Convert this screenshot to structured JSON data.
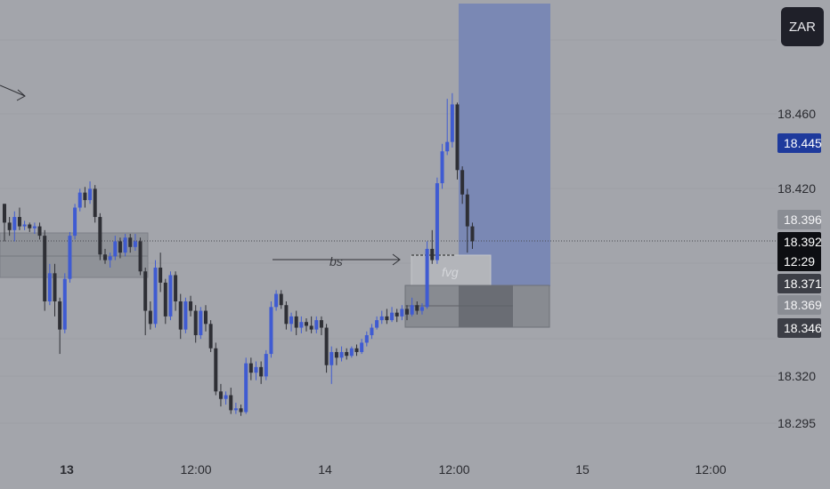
{
  "currency": "ZAR",
  "price_axis": {
    "ticks": [
      "18.460",
      "18.420",
      "18.320",
      "18.295"
    ],
    "badges": [
      {
        "value": "18.445",
        "bg": "#1e3a9c",
        "fg": "#ffffff"
      },
      {
        "value": "18.396",
        "bg": "#8a8d94",
        "fg": "#f4f4f6"
      },
      {
        "value": "18.392",
        "bg": "#0d0e12",
        "fg": "#ffffff"
      },
      {
        "value": "12:29",
        "bg": "#0d0e12",
        "fg": "#ffffff"
      },
      {
        "value": "18.371",
        "bg": "#3c3e46",
        "fg": "#ffffff"
      },
      {
        "value": "18.369",
        "bg": "#8a8d94",
        "fg": "#f4f4f6"
      },
      {
        "value": "18.346",
        "bg": "#3c3e46",
        "fg": "#ffffff"
      }
    ]
  },
  "time_axis": [
    "13",
    "12:00",
    "14",
    "12:00",
    "15",
    "12:00"
  ],
  "annotations": {
    "bs": "bs",
    "fvg": "fvg"
  },
  "colors": {
    "up": "#3f5bd2",
    "down": "#2e2f35",
    "background": "#a3a5ab",
    "target_zone": "#7a88b4"
  },
  "chart_data": {
    "type": "candlestick",
    "symbol_quote": "ZAR",
    "last_price": 18.392,
    "countdown": "12:29",
    "y_ticks": [
      18.46,
      18.42,
      18.32,
      18.295
    ],
    "x_tick_labels": [
      "13",
      "12:00",
      "14",
      "12:00",
      "15",
      "12:00"
    ],
    "candles": [
      [
        18.412,
        18.402,
        18.392,
        18.412
      ],
      [
        18.402,
        18.398,
        18.395,
        18.405
      ],
      [
        18.398,
        18.405,
        18.392,
        18.408
      ],
      [
        18.405,
        18.4,
        18.398,
        18.41
      ],
      [
        18.4,
        18.401,
        18.398,
        18.403
      ],
      [
        18.401,
        18.399,
        18.397,
        18.402
      ],
      [
        18.399,
        18.4,
        18.396,
        18.402
      ],
      [
        18.4,
        18.395,
        18.393,
        18.402
      ],
      [
        18.395,
        18.36,
        18.355,
        18.398
      ],
      [
        18.36,
        18.375,
        18.358,
        18.38
      ],
      [
        18.375,
        18.36,
        18.352,
        18.38
      ],
      [
        18.36,
        18.345,
        18.332,
        18.362
      ],
      [
        18.345,
        18.372,
        18.343,
        18.375
      ],
      [
        18.372,
        18.395,
        18.37,
        18.397
      ],
      [
        18.395,
        18.41,
        18.393,
        18.412
      ],
      [
        18.41,
        18.418,
        18.408,
        18.42
      ],
      [
        18.418,
        18.414,
        18.41,
        18.421
      ],
      [
        18.414,
        18.42,
        18.412,
        18.424
      ],
      [
        18.42,
        18.405,
        18.402,
        18.422
      ],
      [
        18.405,
        18.385,
        18.382,
        18.407
      ],
      [
        18.385,
        18.382,
        18.38,
        18.388
      ],
      [
        18.382,
        18.384,
        18.378,
        18.386
      ],
      [
        18.384,
        18.392,
        18.382,
        18.395
      ],
      [
        18.392,
        18.386,
        18.383,
        18.394
      ],
      [
        18.386,
        18.394,
        18.384,
        18.396
      ],
      [
        18.394,
        18.389,
        18.386,
        18.396
      ],
      [
        18.389,
        18.392,
        18.387,
        18.396
      ],
      [
        18.392,
        18.376,
        18.374,
        18.394
      ],
      [
        18.376,
        18.355,
        18.342,
        18.378
      ],
      [
        18.355,
        18.348,
        18.345,
        18.36
      ],
      [
        18.348,
        18.378,
        18.346,
        18.382
      ],
      [
        18.378,
        18.37,
        18.365,
        18.386
      ],
      [
        18.37,
        18.352,
        18.348,
        18.372
      ],
      [
        18.352,
        18.374,
        18.35,
        18.376
      ],
      [
        18.374,
        18.36,
        18.355,
        18.376
      ],
      [
        18.36,
        18.345,
        18.34,
        18.364
      ],
      [
        18.345,
        18.36,
        18.343,
        18.362
      ],
      [
        18.36,
        18.355,
        18.352,
        18.363
      ],
      [
        18.355,
        18.342,
        18.338,
        18.358
      ],
      [
        18.342,
        18.355,
        18.34,
        18.357
      ],
      [
        18.355,
        18.348,
        18.344,
        18.358
      ],
      [
        18.348,
        18.335,
        18.333,
        18.35
      ],
      [
        18.335,
        18.312,
        18.31,
        18.338
      ],
      [
        18.312,
        18.308,
        18.304,
        18.316
      ],
      [
        18.308,
        18.31,
        18.305,
        18.312
      ],
      [
        18.31,
        18.302,
        18.3,
        18.314
      ],
      [
        18.302,
        18.303,
        18.3,
        18.306
      ],
      [
        18.303,
        18.301,
        18.299,
        18.305
      ],
      [
        18.301,
        18.327,
        18.3,
        18.33
      ],
      [
        18.327,
        18.322,
        18.318,
        18.33
      ],
      [
        18.322,
        18.325,
        18.318,
        18.328
      ],
      [
        18.325,
        18.32,
        18.316,
        18.328
      ],
      [
        18.32,
        18.332,
        18.318,
        18.334
      ],
      [
        18.332,
        18.357,
        18.33,
        18.36
      ],
      [
        18.357,
        18.364,
        18.355,
        18.366
      ],
      [
        18.364,
        18.358,
        18.356,
        18.366
      ],
      [
        18.358,
        18.348,
        18.345,
        18.36
      ],
      [
        18.348,
        18.352,
        18.344,
        18.354
      ],
      [
        18.352,
        18.346,
        18.342,
        18.355
      ],
      [
        18.346,
        18.349,
        18.343,
        18.352
      ],
      [
        18.349,
        18.347,
        18.344,
        18.351
      ],
      [
        18.347,
        18.345,
        18.343,
        18.352
      ],
      [
        18.345,
        18.35,
        18.343,
        18.352
      ],
      [
        18.35,
        18.346,
        18.342,
        18.352
      ],
      [
        18.346,
        18.326,
        18.322,
        18.348
      ],
      [
        18.326,
        18.333,
        18.316,
        18.336
      ],
      [
        18.333,
        18.33,
        18.326,
        18.335
      ],
      [
        18.33,
        18.333,
        18.328,
        18.336
      ],
      [
        18.333,
        18.331,
        18.329,
        18.335
      ],
      [
        18.331,
        18.335,
        18.33,
        18.336
      ],
      [
        18.335,
        18.333,
        18.331,
        18.337
      ],
      [
        18.333,
        18.338,
        18.332,
        18.34
      ],
      [
        18.338,
        18.342,
        18.336,
        18.344
      ],
      [
        18.342,
        18.346,
        18.34,
        18.348
      ],
      [
        18.346,
        18.35,
        18.345,
        18.352
      ],
      [
        18.35,
        18.352,
        18.348,
        18.355
      ],
      [
        18.352,
        18.35,
        18.348,
        18.356
      ],
      [
        18.35,
        18.354,
        18.349,
        18.357
      ],
      [
        18.354,
        18.352,
        18.349,
        18.356
      ],
      [
        18.352,
        18.356,
        18.35,
        18.358
      ],
      [
        18.356,
        18.353,
        18.35,
        18.358
      ],
      [
        18.353,
        18.358,
        18.352,
        18.362
      ],
      [
        18.358,
        18.355,
        18.353,
        18.36
      ],
      [
        18.355,
        18.357,
        18.353,
        18.359
      ],
      [
        18.357,
        18.388,
        18.356,
        18.392
      ],
      [
        18.388,
        18.382,
        18.38,
        18.398
      ],
      [
        18.382,
        18.423,
        18.38,
        18.426
      ],
      [
        18.423,
        18.44,
        18.42,
        18.444
      ],
      [
        18.44,
        18.445,
        18.438,
        18.468
      ],
      [
        18.445,
        18.465,
        18.442,
        18.471
      ],
      [
        18.465,
        18.43,
        18.425,
        18.466
      ],
      [
        18.43,
        18.417,
        18.412,
        18.432
      ],
      [
        18.417,
        18.4,
        18.386,
        18.42
      ],
      [
        18.4,
        18.392,
        18.388,
        18.402
      ]
    ]
  }
}
